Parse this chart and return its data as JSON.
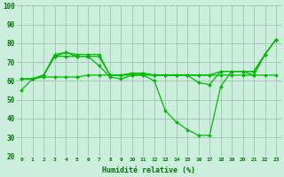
{
  "xlabel": "Humidité relative (%)",
  "background_color": "#cceedd",
  "grid_color": "#99bbaa",
  "line_color": "#00bb00",
  "ylim": [
    20,
    100
  ],
  "xlim": [
    -0.5,
    23.5
  ],
  "yticks": [
    20,
    30,
    40,
    50,
    60,
    70,
    80,
    90,
    100
  ],
  "xticks": [
    0,
    1,
    2,
    3,
    4,
    5,
    6,
    7,
    8,
    9,
    10,
    11,
    12,
    13,
    14,
    15,
    16,
    17,
    18,
    19,
    20,
    21,
    22,
    23
  ],
  "series": [
    [
      55,
      61,
      63,
      73,
      75,
      73,
      73,
      68,
      62,
      61,
      63,
      63,
      60,
      44,
      38,
      34,
      31,
      31,
      57,
      65,
      65,
      63,
      74,
      82
    ],
    [
      61,
      61,
      63,
      73,
      73,
      73,
      73,
      73,
      63,
      63,
      64,
      64,
      63,
      63,
      63,
      63,
      63,
      63,
      65,
      65,
      65,
      65,
      74,
      82
    ],
    [
      61,
      61,
      62,
      62,
      62,
      62,
      63,
      63,
      63,
      63,
      63,
      63,
      63,
      63,
      63,
      63,
      63,
      63,
      63,
      63,
      63,
      63,
      63,
      63
    ],
    [
      61,
      61,
      63,
      74,
      75,
      74,
      74,
      74,
      63,
      63,
      64,
      64,
      63,
      63,
      63,
      63,
      59,
      58,
      65,
      65,
      65,
      65,
      74,
      82
    ]
  ]
}
